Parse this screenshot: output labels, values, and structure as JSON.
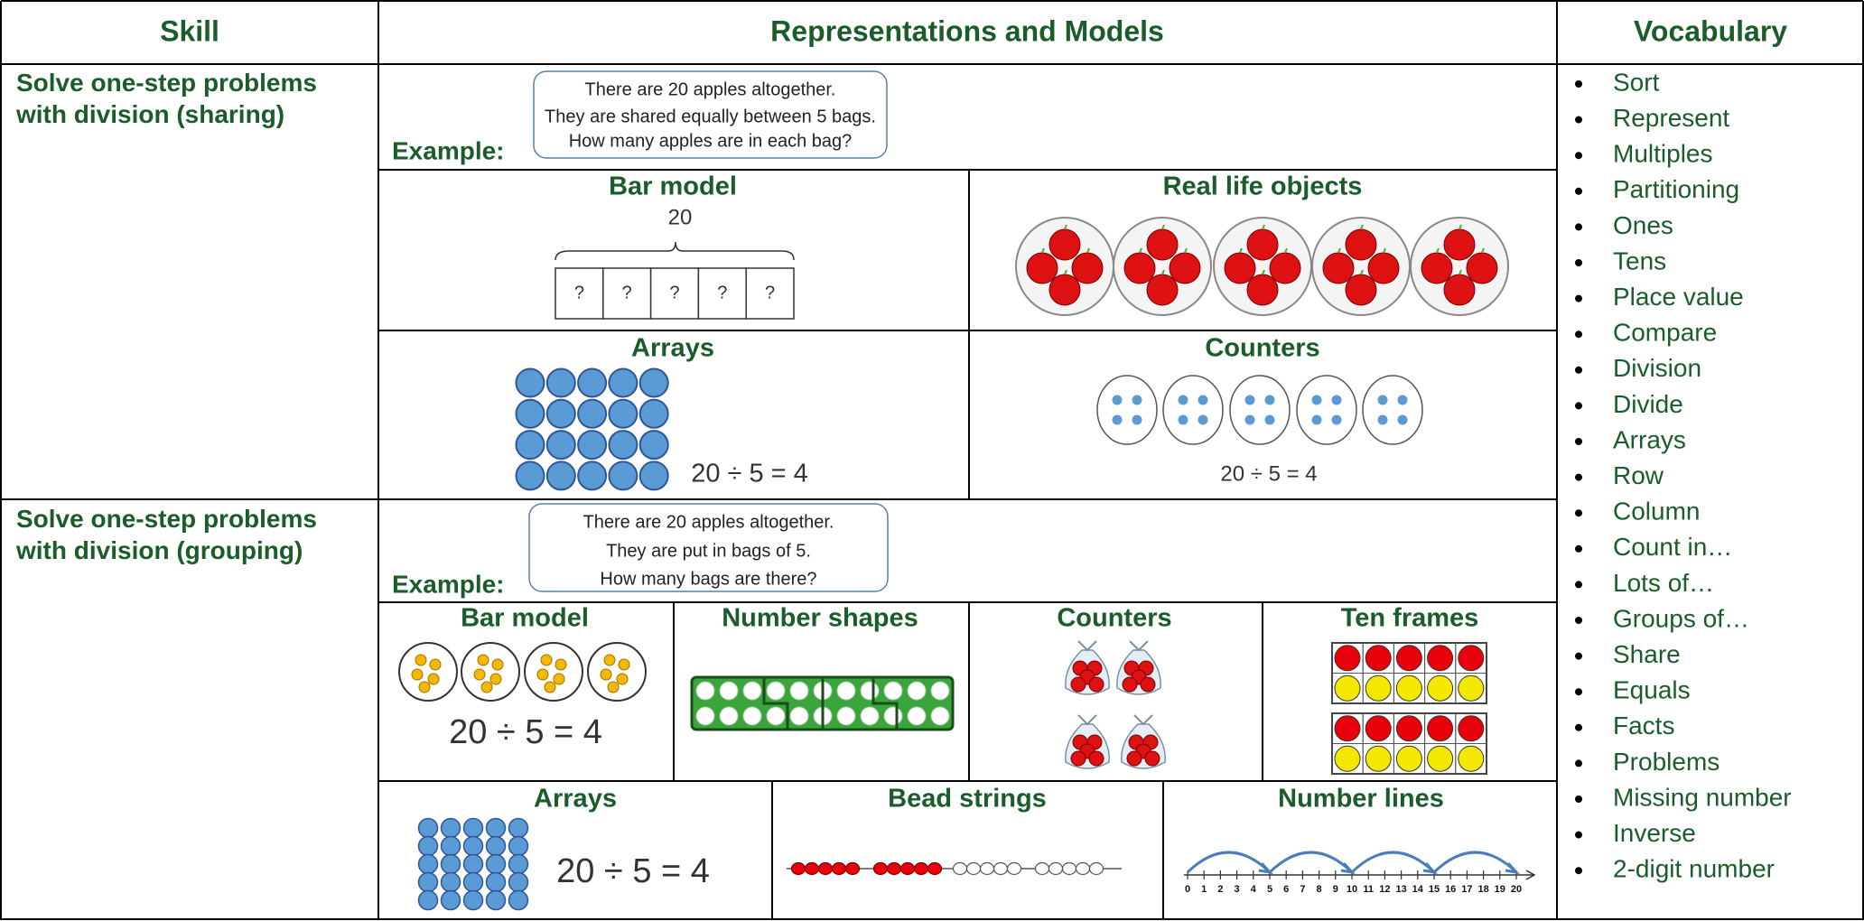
{
  "header": {
    "skill": "Skill",
    "representations": "Representations and Models",
    "vocabulary": "Vocabulary"
  },
  "rows": [
    {
      "skill": "Solve one-step problems with division (sharing)",
      "example_label": "Example:",
      "example_text": [
        "There are 20 apples altogether.",
        "They are shared equally between 5 bags.",
        "How many apples are in each bag?"
      ],
      "models": [
        {
          "title": "Bar model",
          "total": "20",
          "parts": [
            "?",
            "?",
            "?",
            "?",
            "?"
          ]
        },
        {
          "title": "Real life objects"
        },
        {
          "title": "Arrays",
          "equation": "20 ÷ 5 = 4"
        },
        {
          "title": "Counters",
          "equation": "20 ÷ 5 = 4"
        }
      ]
    },
    {
      "skill": "Solve one-step problems with division (grouping)",
      "example_label": "Example:",
      "example_text": [
        "There are 20 apples altogether.",
        "They are put in bags of 5.",
        "How many bags are there?"
      ],
      "models": [
        {
          "title": "Bar model",
          "equation": "20 ÷ 5 = 4"
        },
        {
          "title": "Number shapes"
        },
        {
          "title": "Counters"
        },
        {
          "title": "Ten frames"
        },
        {
          "title": "Arrays",
          "equation": "20 ÷ 5 = 4"
        },
        {
          "title": "Bead strings"
        },
        {
          "title": "Number lines",
          "labels": [
            0,
            1,
            2,
            3,
            4,
            5,
            6,
            7,
            8,
            9,
            10,
            11,
            12,
            13,
            14,
            15,
            16,
            17,
            18,
            19,
            20
          ]
        }
      ]
    }
  ],
  "vocabulary": [
    "Sort",
    "Represent",
    "Multiples",
    "Partitioning",
    "Ones",
    "Tens",
    "Place value",
    "Compare",
    "Division",
    "Divide",
    "Arrays",
    "Row",
    "Column",
    "Count in…",
    "Lots of…",
    "Groups of…",
    "Share",
    "Equals",
    "Facts",
    "Problems",
    "Missing number",
    "Inverse",
    "2-digit number"
  ]
}
